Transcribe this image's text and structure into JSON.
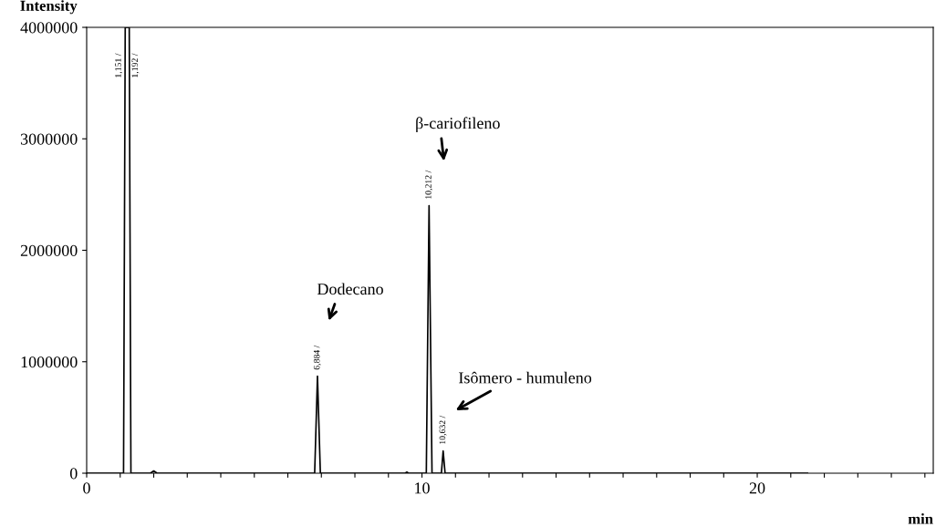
{
  "chart_data": {
    "type": "line",
    "xlabel": "min",
    "ylabel": "Intensity",
    "x": [
      0,
      1.1,
      1.15,
      1.27,
      1.32,
      1.9,
      2.0,
      2.1,
      6.8,
      6.884,
      6.97,
      9.5,
      9.55,
      9.6,
      10.13,
      10.212,
      10.3,
      10.58,
      10.632,
      10.69,
      21.5
    ],
    "series": [
      {
        "color": "#000000",
        "values": [
          0,
          0,
          4000000,
          4000000,
          0,
          0,
          20000,
          0,
          0,
          870000,
          0,
          0,
          10000,
          0,
          0,
          2400000,
          0,
          0,
          200000,
          0,
          0
        ]
      }
    ],
    "xlim": [
      0,
      25.25
    ],
    "xticks": [
      0,
      {
        "value": 1,
        "label": null
      },
      {
        "value": 2,
        "label": null
      },
      {
        "value": 3,
        "label": null
      },
      {
        "value": 4,
        "label": null
      },
      {
        "value": 5,
        "label": null
      },
      {
        "value": 6,
        "label": null
      },
      {
        "value": 7,
        "label": null
      },
      {
        "value": 8,
        "label": null
      },
      {
        "value": 9,
        "label": null
      },
      10,
      {
        "value": 11,
        "label": null
      },
      {
        "value": 12,
        "label": null
      },
      {
        "value": 13,
        "label": null
      },
      {
        "value": 14,
        "label": null
      },
      {
        "value": 15,
        "label": null
      },
      {
        "value": 16,
        "label": null
      },
      {
        "value": 17,
        "label": null
      },
      {
        "value": 18,
        "label": null
      },
      {
        "value": 19,
        "label": null
      },
      20,
      {
        "value": 21,
        "label": null
      },
      {
        "value": 22,
        "label": null
      },
      {
        "value": 23,
        "label": null
      },
      {
        "value": 24,
        "label": null
      },
      {
        "value": 25,
        "label": null
      }
    ],
    "ylim": [
      0,
      4000000
    ],
    "yticks": [
      0,
      1000000,
      2000000,
      3000000,
      4000000
    ],
    "grid": false,
    "legend": false,
    "marker": "none",
    "line_style": "solid",
    "annotations": [
      {
        "text": "1,151 /",
        "x": 1.15,
        "y": 4000000
      },
      {
        "text": "1,192 /",
        "x": 1.27,
        "y": 4000000
      },
      {
        "text": "6,884 /",
        "x": 6.884,
        "y": 870000
      },
      {
        "text": "10,212 /",
        "x": 10.212,
        "y": 2400000
      },
      {
        "text": "10,632 /",
        "x": 10.632,
        "y": 200000
      },
      "Dodecano",
      "β-cariofileno",
      "Isômero - humuleno"
    ]
  }
}
